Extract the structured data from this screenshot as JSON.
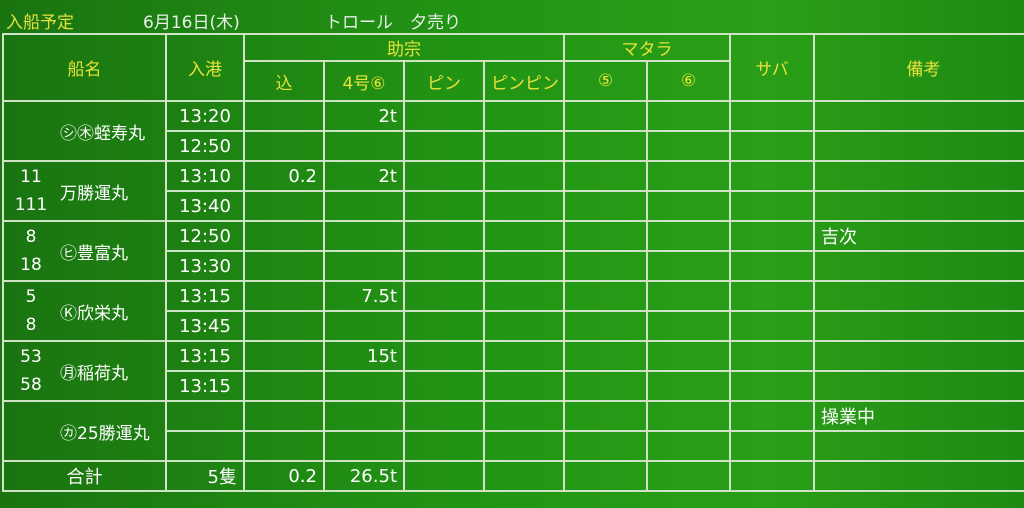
{
  "title": {
    "label": "入船予定",
    "date": "6月16日(木)",
    "kind": "トロール　夕売り"
  },
  "headers": {
    "ship": "船名",
    "arrival": "入港",
    "group_sukesou": "助宗",
    "group_matara": "マタラ",
    "komi": "込",
    "no4": "4号⑥",
    "pin": "ピン",
    "pinpin": "ピンピン",
    "m5": "⑤",
    "m6": "⑥",
    "saba": "サバ",
    "remarks": "備考"
  },
  "ships": [
    {
      "nums": [
        "",
        ""
      ],
      "name": "㋛㊍蛭寿丸",
      "times": [
        "13:20",
        "12:50"
      ],
      "komi": [
        "",
        ""
      ],
      "no4": [
        "2t",
        ""
      ],
      "remarks": [
        "",
        ""
      ]
    },
    {
      "nums": [
        "11",
        "111"
      ],
      "name": "万勝運丸",
      "times": [
        "13:10",
        "13:40"
      ],
      "komi": [
        "0.2",
        ""
      ],
      "no4": [
        "2t",
        ""
      ],
      "remarks": [
        "",
        ""
      ]
    },
    {
      "nums": [
        "8",
        "18"
      ],
      "name": "㋪豊富丸",
      "times": [
        "12:50",
        "13:30"
      ],
      "komi": [
        "",
        ""
      ],
      "no4": [
        "",
        ""
      ],
      "remarks": [
        "吉次",
        ""
      ]
    },
    {
      "nums": [
        "5",
        "8"
      ],
      "name": "Ⓚ欣栄丸",
      "times": [
        "13:15",
        "13:45"
      ],
      "komi": [
        "",
        ""
      ],
      "no4": [
        "7.5t",
        ""
      ],
      "remarks": [
        "",
        ""
      ]
    },
    {
      "nums": [
        "53",
        "58"
      ],
      "name": "㊊稲荷丸",
      "times": [
        "13:15",
        "13:15"
      ],
      "komi": [
        "",
        ""
      ],
      "no4": [
        "15t",
        ""
      ],
      "remarks": [
        "",
        ""
      ]
    },
    {
      "nums": [
        "",
        ""
      ],
      "name": "㋕25勝運丸",
      "times": [
        "",
        ""
      ],
      "komi": [
        "",
        ""
      ],
      "no4": [
        "",
        ""
      ],
      "remarks": [
        "操業中",
        ""
      ]
    }
  ],
  "total": {
    "label": "合計",
    "count": "5隻",
    "komi": "0.2",
    "no4": "26.5t"
  }
}
